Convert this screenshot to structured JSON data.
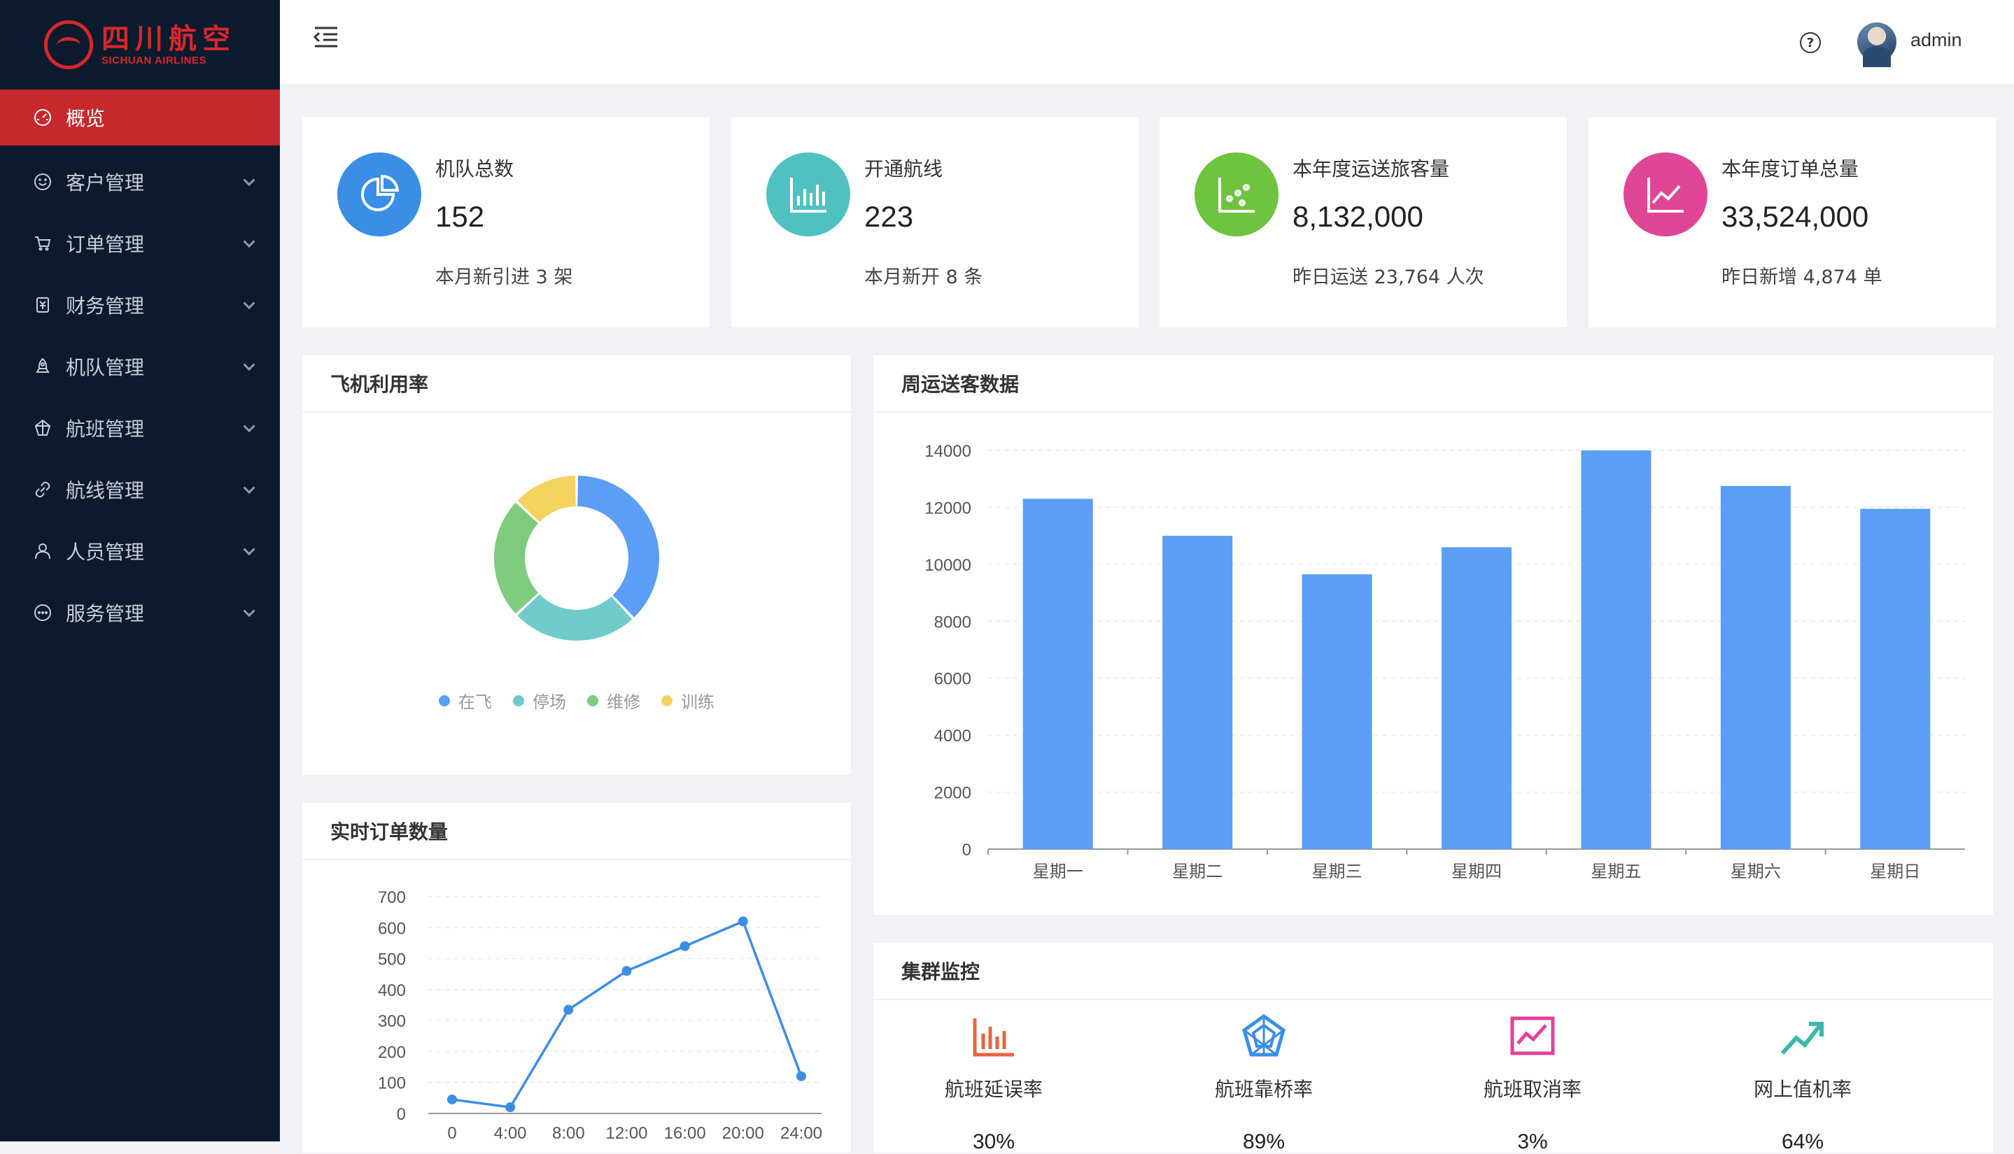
{
  "logo": {
    "cn": "四川航空",
    "en": "SICHUAN AIRLINES"
  },
  "sidebar": {
    "items": [
      {
        "label": "概览",
        "icon": "dashboard-icon",
        "active": true
      },
      {
        "label": "客户管理",
        "icon": "smile-icon"
      },
      {
        "label": "订单管理",
        "icon": "cart-icon"
      },
      {
        "label": "财务管理",
        "icon": "finance-icon"
      },
      {
        "label": "机队管理",
        "icon": "rocket-icon"
      },
      {
        "label": "航班管理",
        "icon": "flight-icon"
      },
      {
        "label": "航线管理",
        "icon": "link-icon"
      },
      {
        "label": "人员管理",
        "icon": "user-icon"
      },
      {
        "label": "服务管理",
        "icon": "service-icon"
      }
    ]
  },
  "header": {
    "username": "admin",
    "help": "?"
  },
  "stats": [
    {
      "label": "机队总数",
      "value": "152",
      "sub": "本月新引进 3 架",
      "color": "#3a8ee6",
      "icon": "pie-chart-icon"
    },
    {
      "label": "开通航线",
      "value": "223",
      "sub": "本月新开 8 条",
      "color": "#4fc1c1",
      "icon": "bar-chart-icon"
    },
    {
      "label": "本年度运送旅客量",
      "value": "8,132,000",
      "sub": "昨日运送 23,764 人次",
      "color": "#6ec33f",
      "icon": "dot-chart-icon"
    },
    {
      "label": "本年度订单总量",
      "value": "33,524,000",
      "sub": "昨日新增 4,874 单",
      "color": "#e04596",
      "icon": "line-chart-icon"
    }
  ],
  "panels": {
    "utilization": "飞机利用率",
    "weekly": "周运送客数据",
    "realtime": "实时订单数量",
    "cluster": "集群监控"
  },
  "monitors": [
    {
      "label": "航班延误率",
      "value": "30%",
      "color": "#e8643c",
      "icon": "bar-monitor-icon"
    },
    {
      "label": "航班靠桥率",
      "value": "89%",
      "color": "#3a8ee6",
      "icon": "radar-icon"
    },
    {
      "label": "航班取消率",
      "value": "3%",
      "color": "#e04596",
      "icon": "area-monitor-icon"
    },
    {
      "label": "网上值机率",
      "value": "64%",
      "color": "#3bb8a8",
      "icon": "trend-up-icon"
    }
  ],
  "chart_data": [
    {
      "type": "pie",
      "title": "飞机利用率",
      "categories": [
        "在飞",
        "停场",
        "维修",
        "训练"
      ],
      "values": [
        38,
        25,
        24,
        13
      ],
      "colors": [
        "#5a9ef5",
        "#72cbcb",
        "#7fcc7f",
        "#f4d35e"
      ],
      "legend": "bottom"
    },
    {
      "type": "bar",
      "title": "周运送客数据",
      "categories": [
        "星期一",
        "星期二",
        "星期三",
        "星期四",
        "星期五",
        "星期六",
        "星期日"
      ],
      "values": [
        12300,
        11000,
        9650,
        10600,
        14000,
        12750,
        11950
      ],
      "ylim": [
        0,
        14000
      ],
      "yticks": [
        0,
        2000,
        4000,
        6000,
        8000,
        10000,
        12000,
        14000
      ],
      "color": "#5a9ef5"
    },
    {
      "type": "line",
      "title": "实时订单数量",
      "x": [
        "0",
        "4:00",
        "8:00",
        "12:00",
        "16:00",
        "20:00",
        "24:00"
      ],
      "values": [
        45,
        20,
        335,
        460,
        540,
        620,
        120
      ],
      "ylim": [
        0,
        700
      ],
      "yticks": [
        0,
        100,
        200,
        300,
        400,
        500,
        600,
        700
      ],
      "color": "#3a8ee6"
    }
  ]
}
